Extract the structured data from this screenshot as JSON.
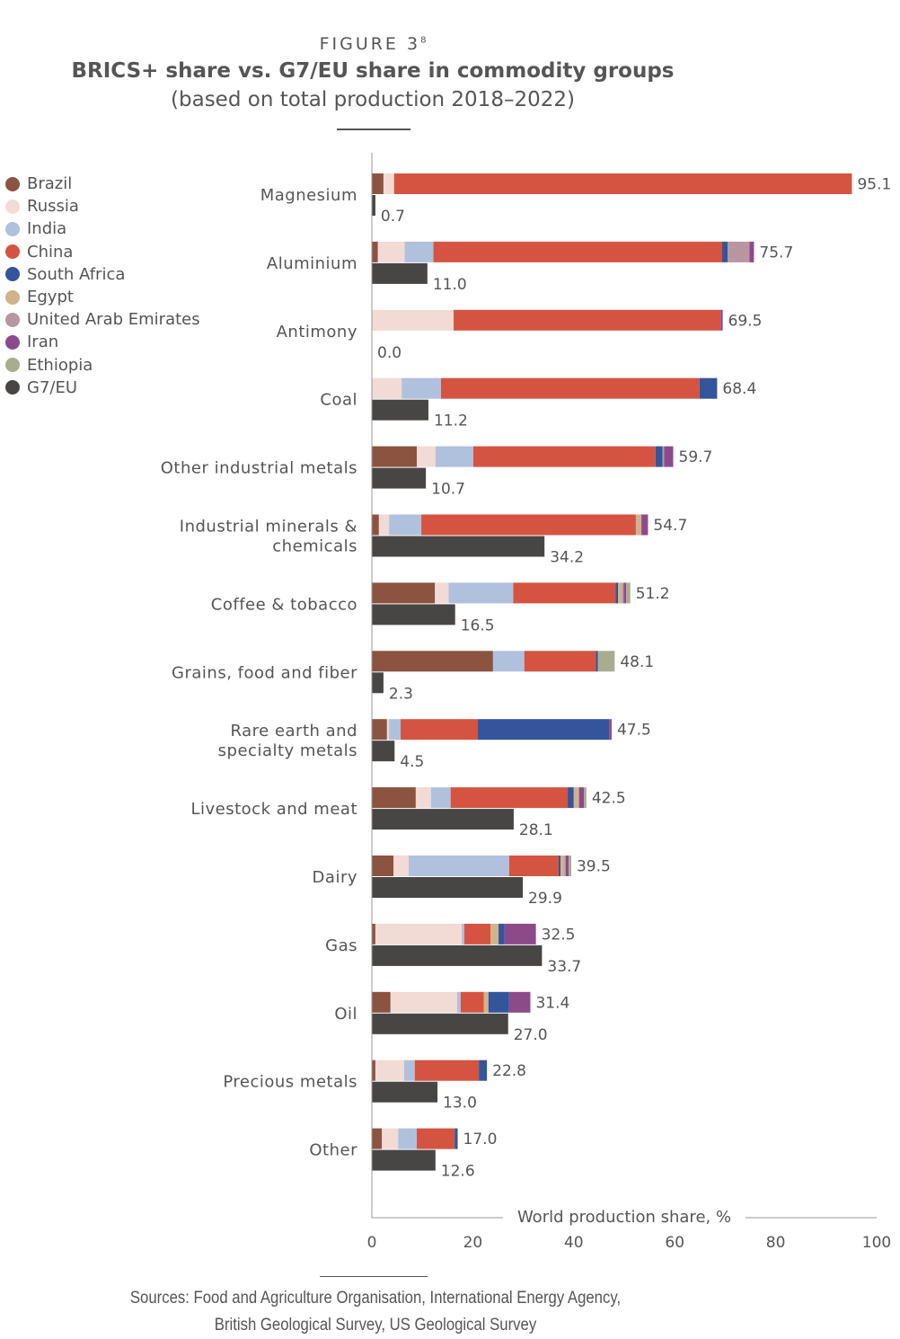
{
  "figure_label": "FIGURE 3",
  "figure_note": "8",
  "chart_data": {
    "type": "bar",
    "orientation": "horizontal",
    "stacked": true,
    "title": "BRICS+ share vs. G7/EU share in commodity groups",
    "subtitle": "(based on total production 2018–2022)",
    "xlabel": "World production share, %",
    "xlim": [
      0,
      100
    ],
    "xticks": [
      0,
      20,
      40,
      60,
      80,
      100
    ],
    "grid": false,
    "legend_placement": "top-left",
    "colors": {
      "Brazil": "#8b5340",
      "Russia": "#f2dbd4",
      "India": "#b0c1de",
      "China": "#d55441",
      "South Africa": "#34559a",
      "Egypt": "#d0b38a",
      "United Arab Emirates": "#b895a0",
      "Iran": "#8d4a8a",
      "Ethiopia": "#a8ad90",
      "G7/EU": "#484644"
    },
    "legend": [
      "Brazil",
      "Russia",
      "India",
      "China",
      "South Africa",
      "Egypt",
      "United Arab Emirates",
      "Iran",
      "Ethiopia",
      "G7/EU"
    ],
    "categories": [
      {
        "label": "Magnesium",
        "brics_total": "95.1",
        "g7": 0.7,
        "g7_label": "0.7",
        "segments": [
          [
            "Brazil",
            2.3
          ],
          [
            "Russia",
            2.1
          ],
          [
            "China",
            90.7
          ]
        ]
      },
      {
        "label": "Aluminium",
        "brics_total": "75.7",
        "g7": 11.0,
        "g7_label": "11.0",
        "segments": [
          [
            "Brazil",
            1.2
          ],
          [
            "Russia",
            5.3
          ],
          [
            "India",
            5.7
          ],
          [
            "China",
            57.2
          ],
          [
            "South Africa",
            1.1
          ],
          [
            "United Arab Emirates",
            4.3
          ],
          [
            "Iran",
            0.9
          ]
        ]
      },
      {
        "label": "Antimony",
        "brics_total": "69.5",
        "g7": 0.0,
        "g7_label": "0.0",
        "segments": [
          [
            "Russia",
            16.2
          ],
          [
            "China",
            52.9
          ],
          [
            "Iran",
            0.4
          ]
        ]
      },
      {
        "label": "Coal",
        "brics_total": "68.4",
        "g7": 11.2,
        "g7_label": "11.2",
        "segments": [
          [
            "Russia",
            5.9
          ],
          [
            "India",
            7.8
          ],
          [
            "China",
            51.2
          ],
          [
            "South Africa",
            3.5
          ]
        ]
      },
      {
        "label": "Other industrial metals",
        "brics_total": "59.7",
        "g7": 10.7,
        "g7_label": "10.7",
        "segments": [
          [
            "Brazil",
            8.9
          ],
          [
            "Russia",
            3.7
          ],
          [
            "India",
            7.5
          ],
          [
            "China",
            36.1
          ],
          [
            "South Africa",
            1.4
          ],
          [
            "United Arab Emirates",
            0.3
          ],
          [
            "Iran",
            1.8
          ]
        ]
      },
      {
        "label": "Industrial minerals & chemicals",
        "brics_total": "54.7",
        "g7": 34.2,
        "g7_label": "34.2",
        "segments": [
          [
            "Brazil",
            1.4
          ],
          [
            "Russia",
            2.0
          ],
          [
            "India",
            6.4
          ],
          [
            "China",
            42.5
          ],
          [
            "Egypt",
            1.1
          ],
          [
            "Iran",
            1.3
          ]
        ]
      },
      {
        "label": "Coffee & tobacco",
        "brics_total": "51.2",
        "g7": 16.5,
        "g7_label": "16.5",
        "segments": [
          [
            "Brazil",
            12.5
          ],
          [
            "Russia",
            2.7
          ],
          [
            "India",
            12.8
          ],
          [
            "China",
            20.3
          ],
          [
            "South Africa",
            0.5
          ],
          [
            "Egypt",
            0.7
          ],
          [
            "United Arab Emirates",
            0.4
          ],
          [
            "Iran",
            0.5
          ],
          [
            "Ethiopia",
            0.8
          ]
        ]
      },
      {
        "label": "Grains, food and fiber",
        "brics_total": "48.1",
        "g7": 2.3,
        "g7_label": "2.3",
        "segments": [
          [
            "Brazil",
            24.0
          ],
          [
            "India",
            6.2
          ],
          [
            "China",
            14.2
          ],
          [
            "South Africa",
            0.4
          ],
          [
            "Ethiopia",
            3.3
          ]
        ]
      },
      {
        "label": "Rare earth and specialty metals",
        "brics_total": "47.5",
        "g7": 4.5,
        "g7_label": "4.5",
        "segments": [
          [
            "Brazil",
            3.0
          ],
          [
            "Russia",
            0.4
          ],
          [
            "India",
            2.3
          ],
          [
            "China",
            15.3
          ],
          [
            "South Africa",
            26.0
          ],
          [
            "Iran",
            0.5
          ]
        ]
      },
      {
        "label": "Livestock and meat",
        "brics_total": "42.5",
        "g7": 28.1,
        "g7_label": "28.1",
        "segments": [
          [
            "Brazil",
            8.7
          ],
          [
            "Russia",
            3.0
          ],
          [
            "India",
            3.9
          ],
          [
            "China",
            23.2
          ],
          [
            "South Africa",
            1.2
          ],
          [
            "Egypt",
            0.9
          ],
          [
            "United Arab Emirates",
            0.2
          ],
          [
            "Iran",
            0.9
          ],
          [
            "Ethiopia",
            0.5
          ]
        ]
      },
      {
        "label": "Dairy",
        "brics_total": "39.5",
        "g7": 29.9,
        "g7_label": "29.9",
        "segments": [
          [
            "Brazil",
            4.3
          ],
          [
            "Russia",
            3.0
          ],
          [
            "India",
            19.9
          ],
          [
            "China",
            9.8
          ],
          [
            "South Africa",
            0.4
          ],
          [
            "Egypt",
            0.7
          ],
          [
            "United Arab Emirates",
            0.3
          ],
          [
            "Iran",
            0.6
          ],
          [
            "Ethiopia",
            0.5
          ]
        ]
      },
      {
        "label": "Gas",
        "brics_total": "32.5",
        "g7": 33.7,
        "g7_label": "33.7",
        "segments": [
          [
            "Brazil",
            0.7
          ],
          [
            "Russia",
            17.1
          ],
          [
            "India",
            0.5
          ],
          [
            "China",
            5.2
          ],
          [
            "Egypt",
            1.6
          ],
          [
            "South Africa",
            1.2
          ],
          [
            "Iran",
            6.2
          ]
        ]
      },
      {
        "label": "Oil",
        "brics_total": "31.4",
        "g7": 27.0,
        "g7_label": "27.0",
        "segments": [
          [
            "Brazil",
            3.7
          ],
          [
            "Russia",
            13.2
          ],
          [
            "India",
            0.7
          ],
          [
            "China",
            4.6
          ],
          [
            "Egypt",
            0.9
          ],
          [
            "South Africa",
            4.1
          ],
          [
            "Iran",
            4.2
          ]
        ]
      },
      {
        "label": "Precious metals",
        "brics_total": "22.8",
        "g7": 13.0,
        "g7_label": "13.0",
        "segments": [
          [
            "Brazil",
            0.7
          ],
          [
            "Russia",
            5.7
          ],
          [
            "India",
            2.1
          ],
          [
            "China",
            12.7
          ],
          [
            "South Africa",
            1.6
          ]
        ]
      },
      {
        "label": "Other",
        "brics_total": "17.0",
        "g7": 12.6,
        "g7_label": "12.6",
        "segments": [
          [
            "Brazil",
            2.0
          ],
          [
            "Russia",
            3.2
          ],
          [
            "India",
            3.7
          ],
          [
            "China",
            7.5
          ],
          [
            "South Africa",
            0.6
          ]
        ]
      }
    ]
  },
  "sources_line1": "Sources: Food and Agriculture Organisation, International Energy Agency,",
  "sources_line2": "British Geological Survey, US Geological Survey"
}
